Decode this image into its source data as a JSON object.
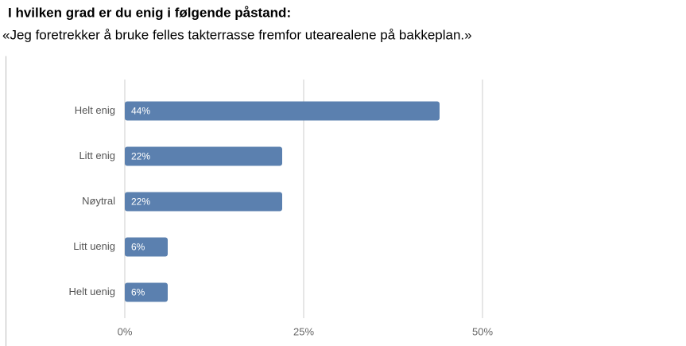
{
  "chart_data": {
    "type": "bar",
    "orientation": "horizontal",
    "title": "I hvilken grad er du enig i følgende påstand:",
    "subtitle": "«Jeg foretrekker å bruke felles takterrasse fremfor utearealene på bakkeplan.»",
    "categories": [
      "Helt enig",
      "Litt enig",
      "Nøytral",
      "Litt uenig",
      "Helt uenig"
    ],
    "values": [
      44,
      22,
      22,
      6,
      6
    ],
    "value_labels": [
      "44%",
      "22%",
      "22%",
      "6%",
      "6%"
    ],
    "color": "#5b80af",
    "xlim": [
      0,
      75
    ],
    "xticks": [
      {
        "value": 0,
        "label": "0%"
      },
      {
        "value": 25,
        "label": "25%"
      },
      {
        "value": 50,
        "label": "50%"
      }
    ],
    "grid": true
  }
}
